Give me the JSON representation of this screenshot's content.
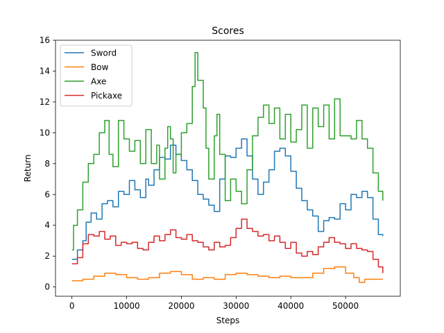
{
  "chart_data": {
    "type": "line",
    "title": "Scores",
    "xlabel": "Steps",
    "ylabel": "Return",
    "xlim": [
      -3000,
      60000
    ],
    "ylim": [
      -0.6,
      16
    ],
    "xticks": [
      0,
      10000,
      20000,
      30000,
      40000,
      50000
    ],
    "yticks": [
      0,
      2,
      4,
      6,
      8,
      10,
      12,
      14,
      16
    ],
    "grid": false,
    "legend": "upper-left",
    "series": [
      {
        "name": "Sword",
        "color": "#1f77b4",
        "points": [
          [
            0,
            1.8
          ],
          [
            1000,
            2.4
          ],
          [
            2000,
            3.0
          ],
          [
            2600,
            4.2
          ],
          [
            3500,
            4.8
          ],
          [
            4500,
            4.4
          ],
          [
            5500,
            5.4
          ],
          [
            6500,
            5.6
          ],
          [
            7500,
            5.2
          ],
          [
            8500,
            6.2
          ],
          [
            9500,
            6.0
          ],
          [
            10500,
            6.9
          ],
          [
            11500,
            6.3
          ],
          [
            12500,
            5.8
          ],
          [
            13500,
            7.0
          ],
          [
            14000,
            6.6
          ],
          [
            15000,
            7.6
          ],
          [
            16000,
            8.4
          ],
          [
            17000,
            8.3
          ],
          [
            18000,
            9.2
          ],
          [
            19000,
            8.6
          ],
          [
            20000,
            8.2
          ],
          [
            21000,
            7.6
          ],
          [
            22000,
            6.9
          ],
          [
            23000,
            6.0
          ],
          [
            24000,
            5.7
          ],
          [
            25000,
            5.3
          ],
          [
            26000,
            4.9
          ],
          [
            27000,
            7.0
          ],
          [
            28000,
            8.5
          ],
          [
            29000,
            8.4
          ],
          [
            30000,
            9.0
          ],
          [
            31000,
            9.6
          ],
          [
            32000,
            8.5
          ],
          [
            33000,
            7.0
          ],
          [
            34000,
            6.0
          ],
          [
            35000,
            6.8
          ],
          [
            36000,
            7.6
          ],
          [
            37000,
            8.8
          ],
          [
            38000,
            9.0
          ],
          [
            39000,
            8.5
          ],
          [
            40000,
            7.5
          ],
          [
            41000,
            6.4
          ],
          [
            42000,
            5.6
          ],
          [
            43000,
            5.0
          ],
          [
            44000,
            4.6
          ],
          [
            45000,
            3.6
          ],
          [
            46000,
            4.3
          ],
          [
            47000,
            4.5
          ],
          [
            48000,
            4.4
          ],
          [
            49000,
            5.4
          ],
          [
            50000,
            5.0
          ],
          [
            51000,
            6.0
          ],
          [
            52000,
            5.8
          ],
          [
            53000,
            6.2
          ],
          [
            54000,
            5.8
          ],
          [
            55000,
            4.4
          ],
          [
            56000,
            3.4
          ],
          [
            56800,
            3.3
          ]
        ]
      },
      {
        "name": "Bow",
        "color": "#ff7f0e",
        "points": [
          [
            0,
            0.4
          ],
          [
            2000,
            0.5
          ],
          [
            4000,
            0.7
          ],
          [
            6000,
            0.9
          ],
          [
            8000,
            0.8
          ],
          [
            10000,
            0.6
          ],
          [
            12000,
            0.5
          ],
          [
            14000,
            0.6
          ],
          [
            16000,
            0.9
          ],
          [
            18000,
            1.0
          ],
          [
            20000,
            0.8
          ],
          [
            22000,
            0.5
          ],
          [
            24000,
            0.6
          ],
          [
            26000,
            0.5
          ],
          [
            28000,
            0.8
          ],
          [
            30000,
            0.9
          ],
          [
            32000,
            0.8
          ],
          [
            34000,
            0.7
          ],
          [
            36000,
            0.6
          ],
          [
            38000,
            0.7
          ],
          [
            40000,
            0.6
          ],
          [
            42000,
            0.6
          ],
          [
            44000,
            0.9
          ],
          [
            46000,
            1.2
          ],
          [
            48000,
            1.3
          ],
          [
            50000,
            0.9
          ],
          [
            51500,
            0.6
          ],
          [
            52500,
            0.3
          ],
          [
            53500,
            0.5
          ],
          [
            56800,
            0.5
          ]
        ]
      },
      {
        "name": "Axe",
        "color": "#2ca02c",
        "points": [
          [
            0,
            2.4
          ],
          [
            300,
            4.0
          ],
          [
            1000,
            5.0
          ],
          [
            2000,
            6.8
          ],
          [
            3000,
            8.0
          ],
          [
            4000,
            8.6
          ],
          [
            5000,
            10.0
          ],
          [
            6000,
            10.8
          ],
          [
            6800,
            8.6
          ],
          [
            7500,
            7.8
          ],
          [
            8500,
            10.8
          ],
          [
            9500,
            9.6
          ],
          [
            10500,
            8.8
          ],
          [
            11500,
            9.5
          ],
          [
            12500,
            8.0
          ],
          [
            13500,
            10.2
          ],
          [
            14500,
            8.0
          ],
          [
            15500,
            9.2
          ],
          [
            16000,
            7.0
          ],
          [
            17000,
            9.0
          ],
          [
            17500,
            10.4
          ],
          [
            18000,
            9.6
          ],
          [
            18500,
            7.4
          ],
          [
            19000,
            8.6
          ],
          [
            20000,
            10.0
          ],
          [
            21000,
            10.6
          ],
          [
            22000,
            13.0
          ],
          [
            22500,
            15.2
          ],
          [
            23000,
            13.4
          ],
          [
            24000,
            11.6
          ],
          [
            24500,
            9.0
          ],
          [
            25000,
            7.0
          ],
          [
            26000,
            9.8
          ],
          [
            26500,
            11.2
          ],
          [
            27000,
            8.6
          ],
          [
            28000,
            5.6
          ],
          [
            29000,
            7.0
          ],
          [
            30000,
            6.2
          ],
          [
            31000,
            5.4
          ],
          [
            32000,
            7.6
          ],
          [
            33000,
            9.8
          ],
          [
            34000,
            11.0
          ],
          [
            35000,
            11.8
          ],
          [
            36000,
            10.6
          ],
          [
            37000,
            11.6
          ],
          [
            38000,
            9.6
          ],
          [
            39000,
            11.2
          ],
          [
            40000,
            9.4
          ],
          [
            41000,
            10.2
          ],
          [
            42000,
            11.8
          ],
          [
            43000,
            9.0
          ],
          [
            44000,
            11.6
          ],
          [
            45000,
            10.4
          ],
          [
            46000,
            11.8
          ],
          [
            47000,
            9.6
          ],
          [
            48000,
            12.2
          ],
          [
            49000,
            9.8
          ],
          [
            50000,
            9.8
          ],
          [
            51000,
            9.6
          ],
          [
            52000,
            10.8
          ],
          [
            53000,
            9.6
          ],
          [
            54000,
            9.0
          ],
          [
            55000,
            7.4
          ],
          [
            56000,
            6.2
          ],
          [
            56800,
            5.6
          ]
        ]
      },
      {
        "name": "Pickaxe",
        "color": "#d62728",
        "points": [
          [
            0,
            1.5
          ],
          [
            1000,
            1.9
          ],
          [
            2000,
            2.8
          ],
          [
            3000,
            3.4
          ],
          [
            4000,
            3.3
          ],
          [
            5000,
            3.6
          ],
          [
            6000,
            3.1
          ],
          [
            7000,
            3.3
          ],
          [
            8000,
            2.7
          ],
          [
            9000,
            2.9
          ],
          [
            10000,
            2.8
          ],
          [
            11000,
            2.9
          ],
          [
            12000,
            2.5
          ],
          [
            13000,
            2.4
          ],
          [
            14000,
            2.9
          ],
          [
            15000,
            3.3
          ],
          [
            16000,
            3.0
          ],
          [
            17000,
            3.4
          ],
          [
            18000,
            3.7
          ],
          [
            19000,
            3.2
          ],
          [
            20000,
            3.1
          ],
          [
            21000,
            3.4
          ],
          [
            22000,
            3.0
          ],
          [
            23000,
            2.9
          ],
          [
            24000,
            2.6
          ],
          [
            25000,
            2.4
          ],
          [
            26000,
            2.9
          ],
          [
            27000,
            2.6
          ],
          [
            28000,
            2.7
          ],
          [
            29000,
            3.2
          ],
          [
            30000,
            3.8
          ],
          [
            31000,
            4.4
          ],
          [
            32000,
            3.8
          ],
          [
            33000,
            3.6
          ],
          [
            34000,
            3.3
          ],
          [
            35000,
            3.4
          ],
          [
            36000,
            3.0
          ],
          [
            37000,
            3.3
          ],
          [
            38000,
            2.9
          ],
          [
            39000,
            2.5
          ],
          [
            40000,
            2.9
          ],
          [
            41000,
            2.2
          ],
          [
            42000,
            2.0
          ],
          [
            43000,
            2.3
          ],
          [
            44000,
            2.1
          ],
          [
            45000,
            2.6
          ],
          [
            46000,
            2.9
          ],
          [
            47000,
            3.2
          ],
          [
            48000,
            2.9
          ],
          [
            49000,
            2.8
          ],
          [
            50000,
            2.5
          ],
          [
            51000,
            2.8
          ],
          [
            52000,
            2.5
          ],
          [
            53000,
            2.4
          ],
          [
            54000,
            2.3
          ],
          [
            55000,
            1.8
          ],
          [
            56000,
            1.3
          ],
          [
            56800,
            0.9
          ]
        ]
      }
    ]
  }
}
